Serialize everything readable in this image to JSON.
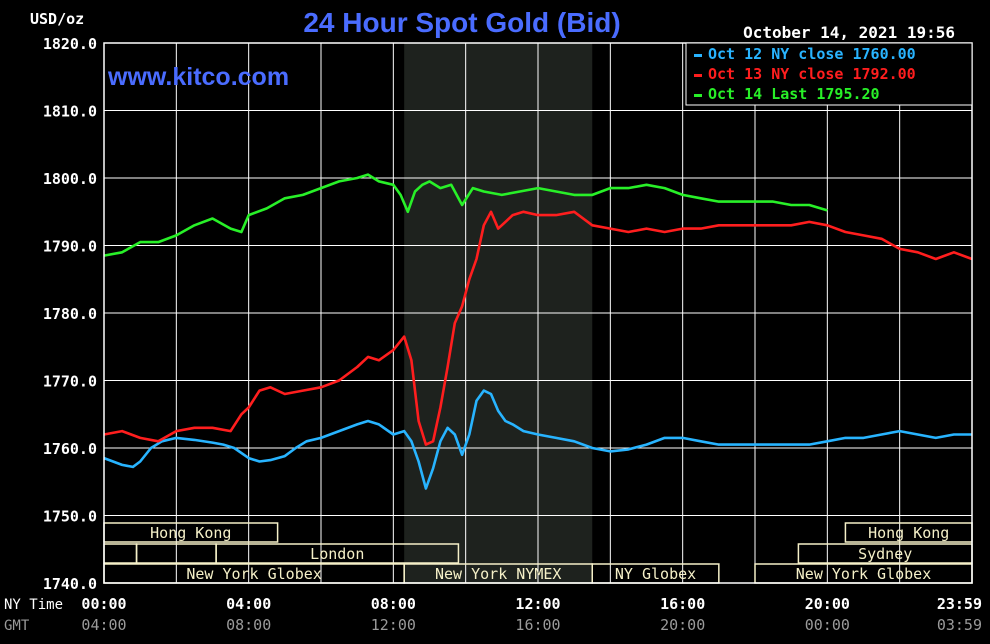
{
  "header": {
    "unit": "USD/oz",
    "title": "24 Hour Spot Gold (Bid)",
    "timestamp": "October 14, 2021 19:56",
    "watermark": "www.kitco.com"
  },
  "colors": {
    "background": "#000000",
    "title": "#4a6cff",
    "grid": "#ffffff",
    "session_shade": "#1e221e",
    "oct12": "#28b4ff",
    "oct13": "#ff1e1e",
    "oct14": "#28f028",
    "market_bar": "#f5f0c8"
  },
  "chart_data": {
    "type": "line",
    "title": "24 Hour Spot Gold (Bid)",
    "ylabel": "USD/oz",
    "xlabel": "",
    "ylim": [
      1740,
      1820
    ],
    "yticks": [
      "1820.0",
      "1810.0",
      "1800.0",
      "1790.0",
      "1780.0",
      "1770.0",
      "1760.0",
      "1750.0",
      "1740.0"
    ],
    "xlim": [
      0,
      24
    ],
    "ny_time_ticks": [
      "00:00",
      "04:00",
      "08:00",
      "12:00",
      "16:00",
      "20:00",
      "23:59"
    ],
    "gmt_ticks": [
      "04:00",
      "08:00",
      "12:00",
      "16:00",
      "20:00",
      "00:00",
      "03:59"
    ],
    "ny_time_label": "NY Time",
    "gmt_label": "GMT",
    "grid": true,
    "legend_position": "top-right",
    "legend": [
      {
        "text": "Oct 12 NY close 1760.00",
        "color": "#28b4ff"
      },
      {
        "text": "Oct 13 NY close 1792.00",
        "color": "#ff1e1e"
      },
      {
        "text": "Oct 14 Last 1795.20",
        "color": "#28f028"
      }
    ],
    "shaded_session": [
      8.3,
      13.5
    ],
    "series": [
      {
        "name": "Oct 12",
        "color": "#28b4ff",
        "x": [
          0,
          0.5,
          0.8,
          1.0,
          1.3,
          1.6,
          2.0,
          2.5,
          3.0,
          3.3,
          3.6,
          4.0,
          4.3,
          4.6,
          5.0,
          5.3,
          5.6,
          6.0,
          6.5,
          7.0,
          7.3,
          7.6,
          8.0,
          8.3,
          8.5,
          8.7,
          8.9,
          9.1,
          9.3,
          9.5,
          9.7,
          9.9,
          10.1,
          10.3,
          10.5,
          10.7,
          10.9,
          11.1,
          11.3,
          11.6,
          12.0,
          12.5,
          13.0,
          13.5,
          14.0,
          14.5,
          15.0,
          15.5,
          16.0,
          16.5,
          17.0,
          17.5,
          18.0,
          18.5,
          19.0,
          19.5,
          20.0,
          20.5,
          21.0,
          21.5,
          22.0,
          22.5,
          23.0,
          23.5,
          24.0
        ],
        "values": [
          1758.5,
          1757.5,
          1757.2,
          1758.0,
          1760.0,
          1761.0,
          1761.5,
          1761.2,
          1760.8,
          1760.5,
          1760.0,
          1758.5,
          1758.0,
          1758.2,
          1758.8,
          1760.0,
          1761.0,
          1761.5,
          1762.5,
          1763.5,
          1764.0,
          1763.5,
          1762.0,
          1762.5,
          1761.0,
          1758.0,
          1754.0,
          1757.0,
          1761.0,
          1763.0,
          1762.0,
          1759.0,
          1762.0,
          1767.0,
          1768.5,
          1768.0,
          1765.5,
          1764.0,
          1763.5,
          1762.5,
          1762.0,
          1761.5,
          1761.0,
          1760.0,
          1759.5,
          1759.8,
          1760.5,
          1761.5,
          1761.5,
          1761.0,
          1760.5,
          1760.5,
          1760.5,
          1760.5,
          1760.5,
          1760.5,
          1761.0,
          1761.5,
          1761.5,
          1762.0,
          1762.5,
          1762.0,
          1761.5,
          1762.0,
          1762.0
        ]
      },
      {
        "name": "Oct 13",
        "color": "#ff1e1e",
        "x": [
          0,
          0.5,
          1.0,
          1.5,
          2.0,
          2.5,
          3.0,
          3.5,
          3.8,
          4.0,
          4.3,
          4.6,
          5.0,
          5.5,
          6.0,
          6.5,
          7.0,
          7.3,
          7.6,
          8.0,
          8.3,
          8.5,
          8.7,
          8.9,
          9.1,
          9.3,
          9.5,
          9.7,
          9.9,
          10.1,
          10.3,
          10.5,
          10.7,
          10.9,
          11.1,
          11.3,
          11.6,
          12.0,
          12.5,
          13.0,
          13.5,
          14.0,
          14.5,
          15.0,
          15.5,
          16.0,
          16.5,
          17.0,
          17.5,
          18.0,
          18.5,
          19.0,
          19.5,
          20.0,
          20.5,
          21.0,
          21.5,
          22.0,
          22.5,
          23.0,
          23.5,
          24.0
        ],
        "values": [
          1762.0,
          1762.5,
          1761.5,
          1761.0,
          1762.5,
          1763.0,
          1763.0,
          1762.5,
          1765.0,
          1766.0,
          1768.5,
          1769.0,
          1768.0,
          1768.5,
          1769.0,
          1770.0,
          1772.0,
          1773.5,
          1773.0,
          1774.5,
          1776.5,
          1773.0,
          1764.0,
          1760.5,
          1761.0,
          1766.0,
          1772.0,
          1778.5,
          1781.0,
          1785.0,
          1788.0,
          1793.0,
          1795.0,
          1792.5,
          1793.5,
          1794.5,
          1795.0,
          1794.5,
          1794.5,
          1795.0,
          1793.0,
          1792.5,
          1792.0,
          1792.5,
          1792.0,
          1792.5,
          1792.5,
          1793.0,
          1793.0,
          1793.0,
          1793.0,
          1793.0,
          1793.5,
          1793.0,
          1792.0,
          1791.5,
          1791.0,
          1789.5,
          1789.0,
          1788.0,
          1789.0,
          1788.0
        ]
      },
      {
        "name": "Oct 14",
        "color": "#28f028",
        "x": [
          0,
          0.5,
          1.0,
          1.5,
          2.0,
          2.5,
          3.0,
          3.5,
          3.8,
          4.0,
          4.5,
          5.0,
          5.5,
          6.0,
          6.5,
          7.0,
          7.3,
          7.6,
          8.0,
          8.2,
          8.4,
          8.6,
          8.8,
          9.0,
          9.3,
          9.6,
          9.9,
          10.2,
          10.5,
          11.0,
          11.5,
          12.0,
          12.5,
          13.0,
          13.5,
          14.0,
          14.5,
          15.0,
          15.5,
          16.0,
          16.5,
          17.0,
          17.5,
          18.0,
          18.5,
          19.0,
          19.5,
          20.0
        ],
        "values": [
          1788.5,
          1789.0,
          1790.5,
          1790.5,
          1791.5,
          1793.0,
          1794.0,
          1792.5,
          1792.0,
          1794.5,
          1795.5,
          1797.0,
          1797.5,
          1798.5,
          1799.5,
          1800.0,
          1800.5,
          1799.5,
          1799.0,
          1797.5,
          1795.0,
          1798.0,
          1799.0,
          1799.5,
          1798.5,
          1799.0,
          1796.0,
          1798.5,
          1798.0,
          1797.5,
          1798.0,
          1798.5,
          1798.0,
          1797.5,
          1797.5,
          1798.5,
          1798.5,
          1799.0,
          1798.5,
          1797.5,
          1797.0,
          1796.5,
          1796.5,
          1796.5,
          1796.5,
          1796.0,
          1796.0,
          1795.2
        ]
      }
    ],
    "markets": [
      {
        "name": "Hong Kong",
        "row": 0,
        "start": 0,
        "end": 4.8
      },
      {
        "name": "",
        "row": 1,
        "start": 0,
        "end": 0.9
      },
      {
        "name": "",
        "row": 1,
        "start": 0.9,
        "end": 3.1
      },
      {
        "name": "London",
        "row": 1,
        "start": 3.1,
        "end": 9.8
      },
      {
        "name": "New York Globex",
        "row": 2,
        "start": 0,
        "end": 8.3
      },
      {
        "name": "New York NYMEX",
        "row": 2,
        "start": 8.3,
        "end": 13.5
      },
      {
        "name": "NY Globex",
        "row": 2,
        "start": 13.5,
        "end": 17.0
      },
      {
        "name": "New York Globex",
        "row": 2,
        "start": 18.0,
        "end": 24
      },
      {
        "name": "Hong Kong",
        "row": 0,
        "start": 20.5,
        "end": 24
      },
      {
        "name": "Sydney",
        "row": 1,
        "start": 19.2,
        "end": 24
      }
    ]
  }
}
